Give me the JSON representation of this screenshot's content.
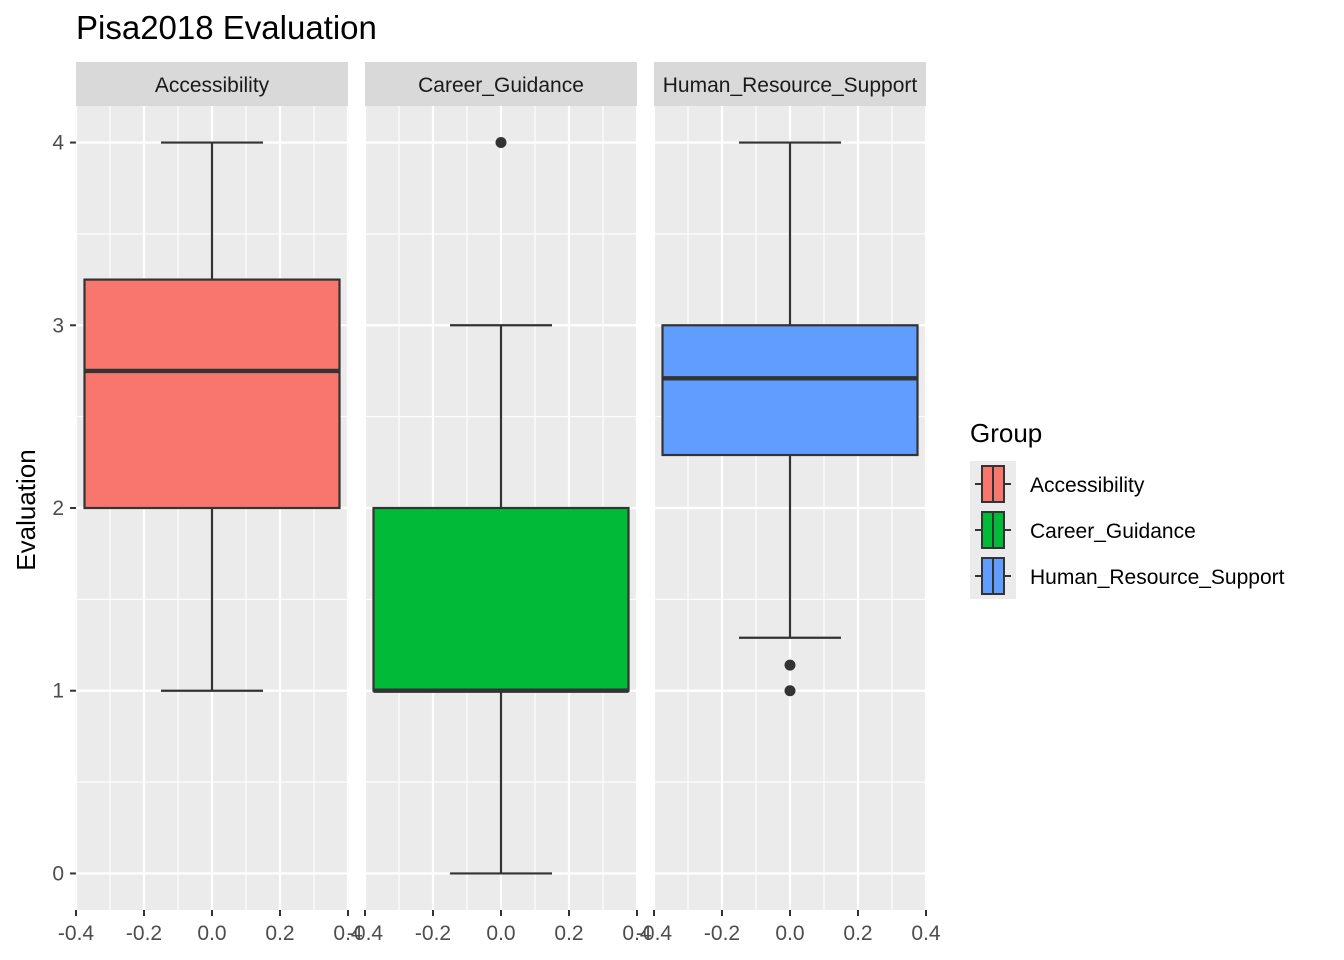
{
  "chart_data": {
    "type": "boxplot",
    "title": "Pisa2018 Evaluation",
    "xlabel": "",
    "ylabel": "Evaluation",
    "facets": [
      "Accessibility",
      "Career_Guidance",
      "Human_Resource_Support"
    ],
    "xlim": [
      -0.4,
      0.4
    ],
    "ylim": [
      0,
      4
    ],
    "x_ticks": [
      "-0.4",
      "-0.2",
      "0.0",
      "0.2",
      "0.4"
    ],
    "y_ticks": [
      "0",
      "1",
      "2",
      "3",
      "4"
    ],
    "grid": true,
    "legend": {
      "title": "Group",
      "position": "right",
      "entries": [
        "Accessibility",
        "Career_Guidance",
        "Human_Resource_Support"
      ]
    },
    "series": [
      {
        "name": "Accessibility",
        "color": "#F8766D",
        "min": 1,
        "q1": 2,
        "median": 2.75,
        "q3": 3.25,
        "max": 4,
        "outliers": []
      },
      {
        "name": "Career_Guidance",
        "color": "#00BA38",
        "min": 0,
        "q1": 1,
        "median": 1,
        "q3": 2,
        "max": 3,
        "outliers": [
          4
        ]
      },
      {
        "name": "Human_Resource_Support",
        "color": "#619CFF",
        "min": 1.29,
        "q1": 2.29,
        "median": 2.71,
        "q3": 3,
        "max": 4,
        "outliers": [
          1.14,
          1
        ]
      }
    ]
  }
}
